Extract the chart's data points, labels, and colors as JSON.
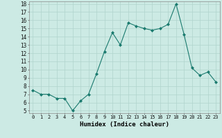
{
  "x": [
    0,
    1,
    2,
    3,
    4,
    5,
    6,
    7,
    8,
    9,
    10,
    11,
    12,
    13,
    14,
    15,
    16,
    17,
    18,
    19,
    20,
    21,
    22,
    23
  ],
  "y": [
    7.5,
    7.0,
    7.0,
    6.5,
    6.5,
    5.0,
    6.2,
    7.0,
    9.5,
    12.2,
    14.5,
    13.0,
    15.7,
    15.3,
    15.0,
    14.8,
    15.0,
    15.5,
    18.0,
    14.3,
    10.2,
    9.3,
    9.7,
    8.5
  ],
  "line_color": "#1a7a6e",
  "marker": "D",
  "marker_size": 2.0,
  "bg_color": "#cceae4",
  "grid_color": "#b0d4cc",
  "xlabel": "Humidex (Indice chaleur)",
  "ylim": [
    5,
    18
  ],
  "yticks": [
    5,
    6,
    7,
    8,
    9,
    10,
    11,
    12,
    13,
    14,
    15,
    16,
    17,
    18
  ],
  "xlim": [
    -0.5,
    23.5
  ],
  "xticks": [
    0,
    1,
    2,
    3,
    4,
    5,
    6,
    7,
    8,
    9,
    10,
    11,
    12,
    13,
    14,
    15,
    16,
    17,
    18,
    19,
    20,
    21,
    22,
    23
  ]
}
